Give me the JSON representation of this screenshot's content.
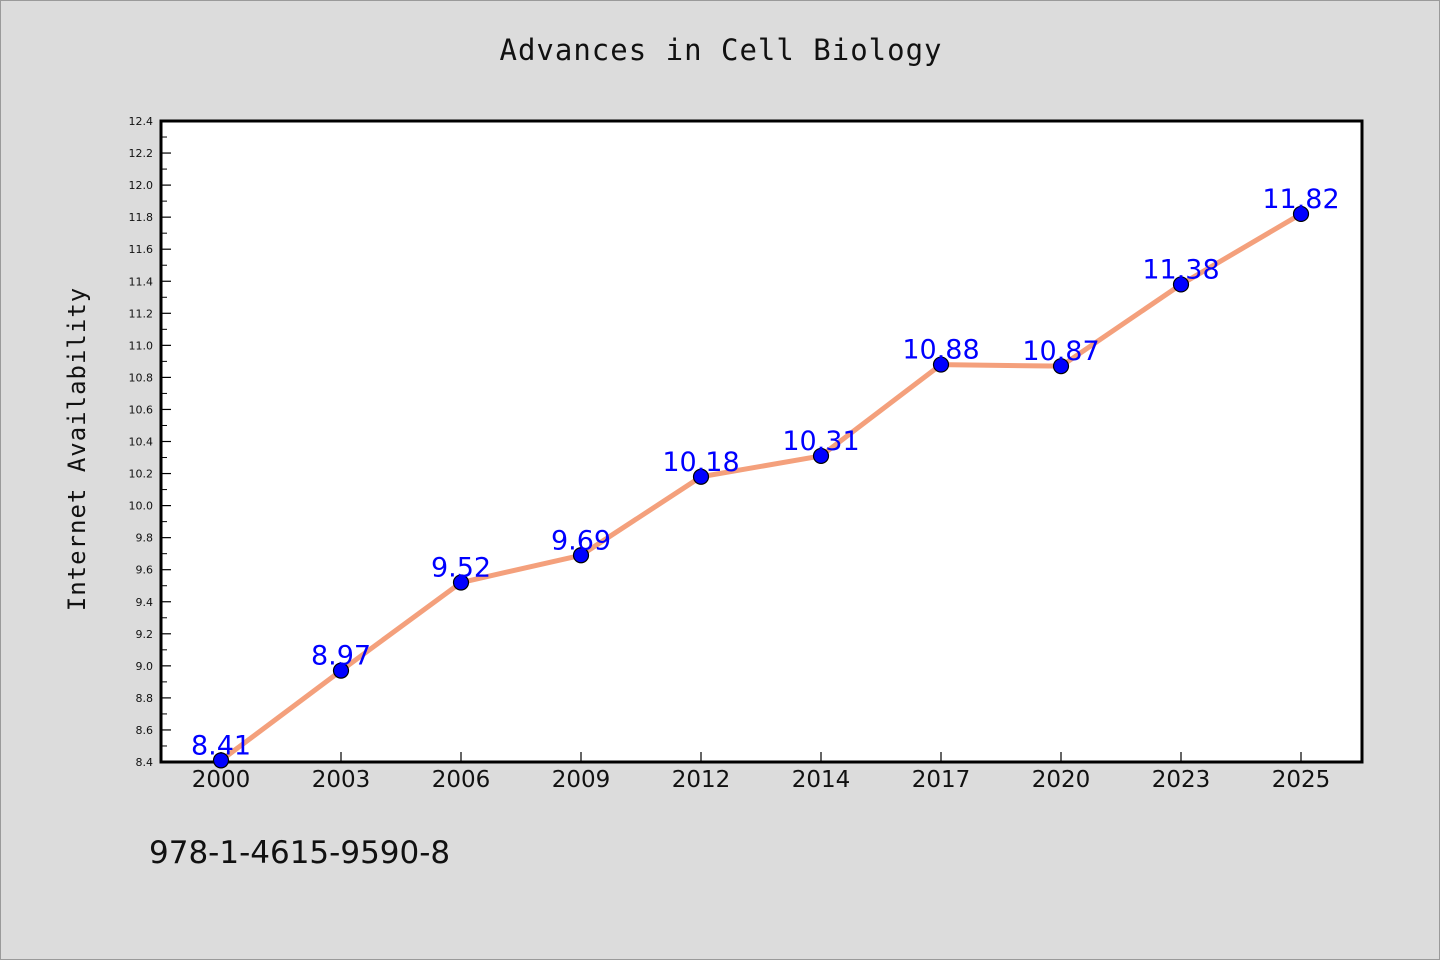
{
  "chart_data": {
    "type": "line",
    "title": "Advances in Cell Biology",
    "xlabel": "",
    "ylabel": "Internet Availability",
    "categories": [
      "2000",
      "2003",
      "2006",
      "2009",
      "2012",
      "2014",
      "2017",
      "2020",
      "2023",
      "2025"
    ],
    "series": [
      {
        "values": [
          8.41,
          8.97,
          9.52,
          9.69,
          10.18,
          10.31,
          10.88,
          10.87,
          11.38,
          11.82
        ],
        "line_color": "#f4a07c",
        "marker_color": "#0000ff"
      }
    ],
    "data_labels": [
      "8.41",
      "8.97",
      "9.52",
      "9.69",
      "10.18",
      "10.31",
      "10.88",
      "10.87",
      "11.38",
      "11.82"
    ],
    "ylim": [
      8.4,
      12.4
    ],
    "yticks": [
      "8.4",
      "8.6",
      "8.8",
      "9.0",
      "9.2",
      "9.4",
      "9.6",
      "9.8",
      "10.0",
      "10.2",
      "10.4",
      "10.6",
      "10.8",
      "11.0",
      "11.2",
      "11.4",
      "11.6",
      "11.8",
      "12.0",
      "12.2",
      "12.4"
    ],
    "grid": false,
    "legend": "none"
  },
  "footer": {
    "isbn": "978-1-4615-9590-8"
  },
  "colors": {
    "background": "#dcdcdc",
    "plot_background": "#ffffff"
  }
}
